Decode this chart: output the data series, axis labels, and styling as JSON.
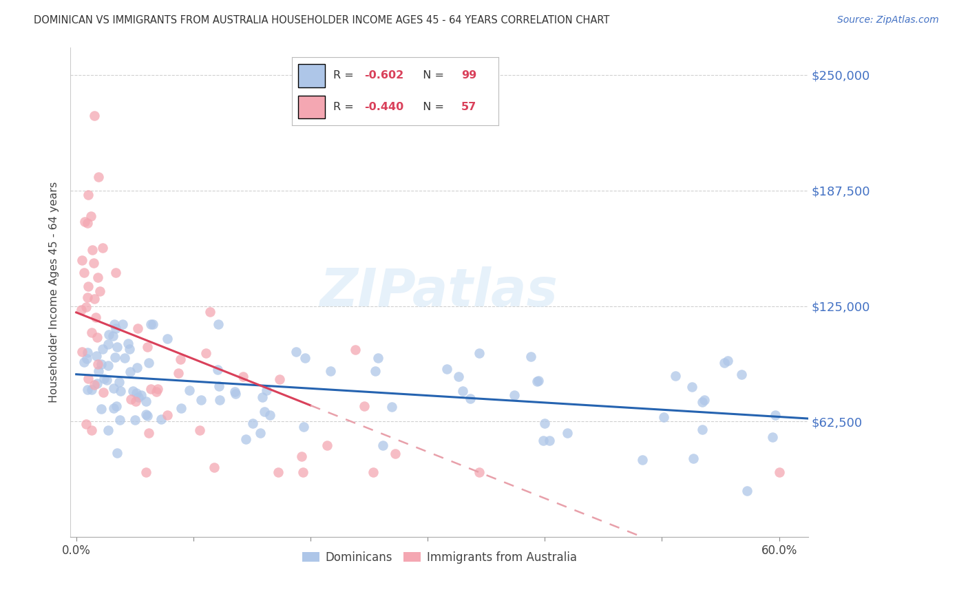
{
  "title": "DOMINICAN VS IMMIGRANTS FROM AUSTRALIA HOUSEHOLDER INCOME AGES 45 - 64 YEARS CORRELATION CHART",
  "source": "Source: ZipAtlas.com",
  "ylabel": "Householder Income Ages 45 - 64 years",
  "ytick_labels": [
    "$62,500",
    "$125,000",
    "$187,500",
    "$250,000"
  ],
  "ytick_vals": [
    62500,
    125000,
    187500,
    250000
  ],
  "ylim": [
    0,
    265000
  ],
  "xlim": [
    -0.005,
    0.625
  ],
  "background_color": "#ffffff",
  "dominican_color": "#aec6e8",
  "australia_color": "#f4a7b2",
  "dominican_line_color": "#2563b0",
  "australia_line_color": "#d9405a",
  "australia_line_dashed_color": "#e8a0aa",
  "dominican_R": -0.602,
  "dominican_N": 99,
  "australia_R": -0.44,
  "australia_N": 57,
  "r_color": "#d9405a",
  "n_color": "#d9405a"
}
